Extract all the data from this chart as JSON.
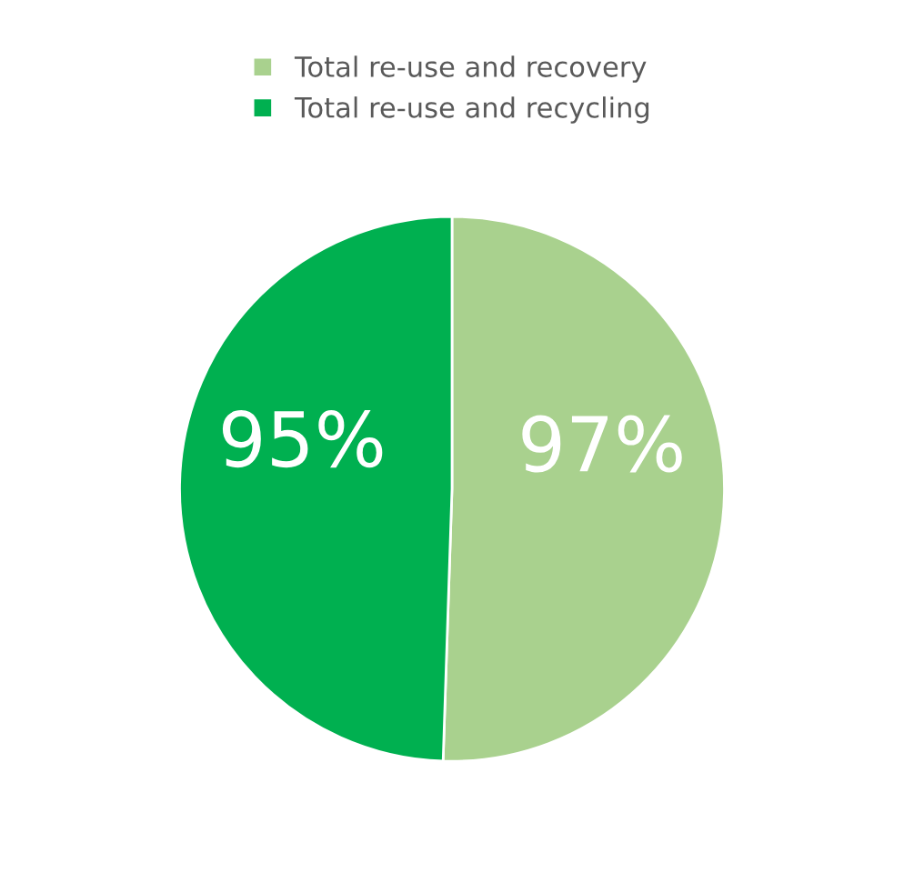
{
  "chart_data": {
    "type": "pie",
    "categories": [
      "Total re-use and recovery",
      "Total re-use and recycling"
    ],
    "values": [
      97,
      95
    ],
    "colors": [
      "#a9d18e",
      "#00b050"
    ],
    "value_labels": [
      "97%",
      "95%"
    ],
    "legend": "top"
  }
}
